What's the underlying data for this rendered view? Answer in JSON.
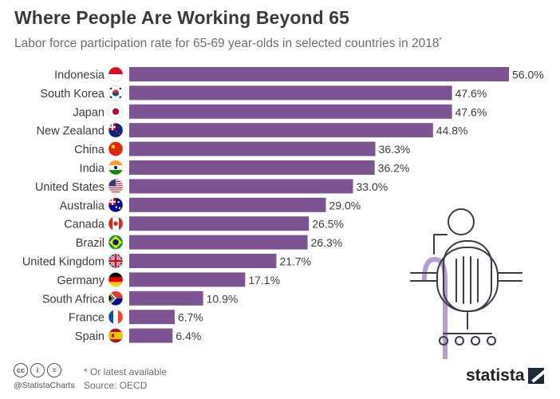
{
  "header": {
    "title": "Where People Are Working Beyond 65",
    "subtitle": "Labor force participation rate for 65-69 year-olds in selected countries in 2018",
    "subtitle_mark": "*"
  },
  "footer": {
    "note": "* Or latest available",
    "source": "Source: OECD",
    "handle": "@StatistaCharts",
    "brand": "statista",
    "license_icons": [
      "cc",
      "i",
      "="
    ]
  },
  "colors": {
    "bar": "#7b5491",
    "text": "#3c3c3c",
    "illustration": "#3a3a4a",
    "cane": "#b79ccc"
  },
  "chart_data": {
    "type": "bar",
    "orientation": "horizontal",
    "categories": [
      "Indonesia",
      "South Korea",
      "Japan",
      "New Zealand",
      "China",
      "India",
      "United States",
      "Australia",
      "Canada",
      "Brazil",
      "United Kingdom",
      "Germany",
      "South Africa",
      "France",
      "Spain"
    ],
    "values": [
      56.0,
      47.6,
      47.6,
      44.8,
      36.3,
      36.2,
      33.0,
      29.0,
      26.5,
      26.3,
      21.7,
      17.1,
      10.9,
      6.7,
      6.4
    ],
    "value_labels": [
      "56.0%",
      "47.6%",
      "47.6%",
      "44.8%",
      "36.3%",
      "36.2%",
      "33.0%",
      "29.0%",
      "26.5%",
      "26.3%",
      "21.7%",
      "17.1%",
      "10.9%",
      "6.7%",
      "6.4%"
    ],
    "flags": [
      "indonesia-flag",
      "south-korea-flag",
      "japan-flag",
      "new-zealand-flag",
      "china-flag",
      "india-flag",
      "united-states-flag",
      "australia-flag",
      "canada-flag",
      "brazil-flag",
      "united-kingdom-flag",
      "germany-flag",
      "south-africa-flag",
      "france-flag",
      "spain-flag"
    ],
    "unit": "%",
    "xlim": [
      0,
      56
    ],
    "title": "Where People Are Working Beyond 65",
    "grid": false,
    "legend": "none"
  }
}
